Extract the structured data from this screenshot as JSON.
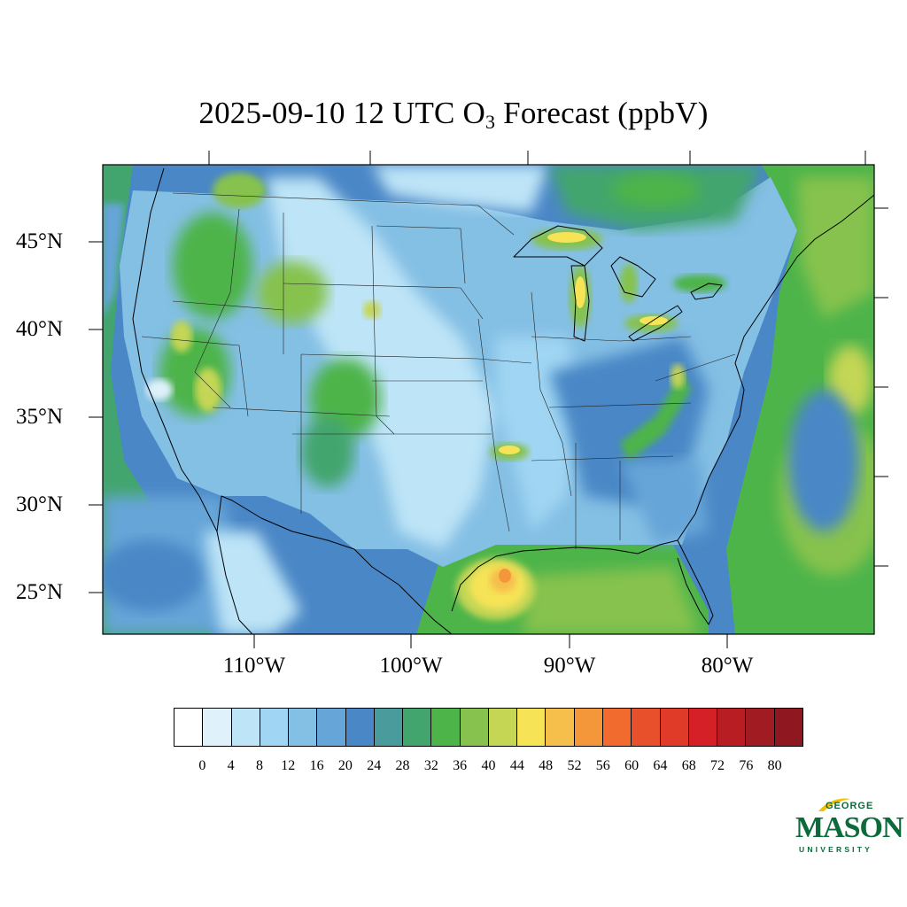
{
  "title": {
    "main": "2025-09-10 12 UTC O",
    "subscript": "3",
    "suffix": " Forecast (ppbV)"
  },
  "map": {
    "region": "Contiguous United States",
    "lat_labels": [
      "45°N",
      "40°N",
      "35°N",
      "30°N",
      "25°N"
    ],
    "lon_labels": [
      "110°W",
      "100°W",
      "90°W",
      "80°W"
    ]
  },
  "colorbar": {
    "tick_labels": [
      "0",
      "4",
      "8",
      "12",
      "16",
      "20",
      "24",
      "28",
      "32",
      "36",
      "40",
      "44",
      "48",
      "52",
      "56",
      "60",
      "64",
      "68",
      "72",
      "76",
      "80"
    ],
    "colors": [
      "#ffffff",
      "#dff1fb",
      "#bde4f7",
      "#a0d6f3",
      "#84bfe4",
      "#66a5d8",
      "#4a87c6",
      "#4a9b9b",
      "#42a56d",
      "#4db44a",
      "#86c24d",
      "#c4d654",
      "#f6e356",
      "#f6be4b",
      "#f4973b",
      "#f26b2e",
      "#e8502b",
      "#e03a28",
      "#d42026",
      "#b81d24",
      "#a11b22",
      "#8e1720"
    ]
  },
  "logo": {
    "line1": "GEORGE",
    "line2": "MASON",
    "line3": "UNIVERSITY"
  }
}
